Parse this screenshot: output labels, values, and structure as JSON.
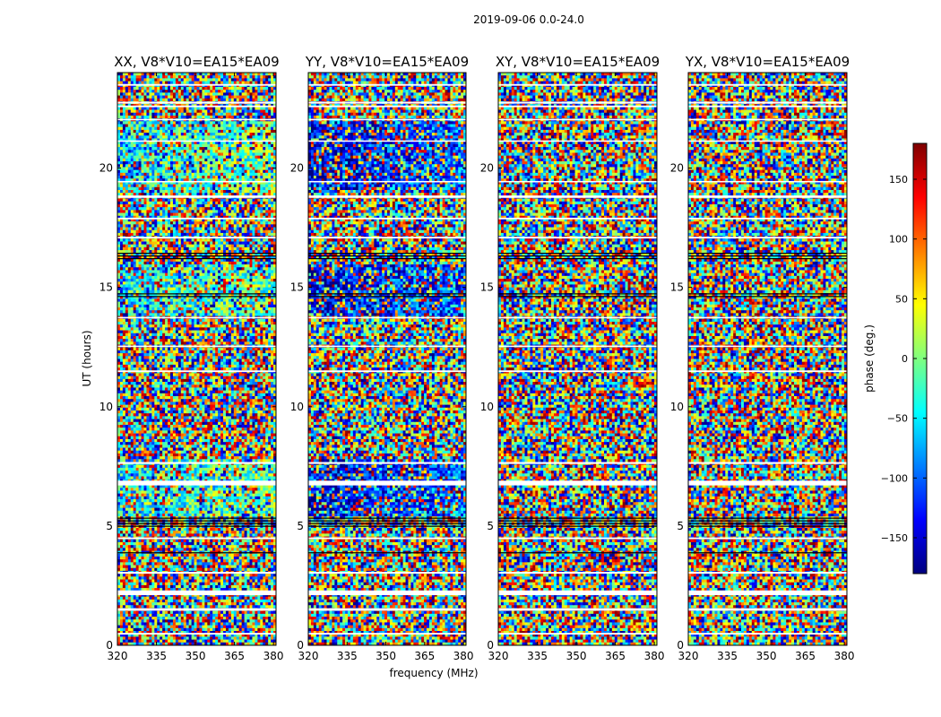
{
  "figure": {
    "suptitle": "2019-09-06 0.0-24.0",
    "xlabel": "frequency (MHz)",
    "ylabel": "UT (hours)",
    "colormap_colors": [
      "#00007f",
      "#0000ff",
      "#007fff",
      "#00ffff",
      "#7fff7f",
      "#ffff00",
      "#ff7f00",
      "#ff0000",
      "#7f0000"
    ]
  },
  "colorbar": {
    "label": "phase (deg.)",
    "range": [
      -180,
      180
    ],
    "ticks": [
      {
        "value": 150,
        "label": "150"
      },
      {
        "value": 100,
        "label": "100"
      },
      {
        "value": 50,
        "label": "50"
      },
      {
        "value": 0,
        "label": "0"
      },
      {
        "value": -50,
        "label": "−50"
      },
      {
        "value": -100,
        "label": "−100"
      },
      {
        "value": -150,
        "label": "−150"
      }
    ]
  },
  "chart_data": {
    "type": "heatmap",
    "xlim": [
      320,
      381
    ],
    "ylim": [
      0,
      24
    ],
    "xticks": [
      {
        "value": 320,
        "label": "320"
      },
      {
        "value": 335,
        "label": "335"
      },
      {
        "value": 350,
        "label": "350"
      },
      {
        "value": 365,
        "label": "365"
      },
      {
        "value": 380,
        "label": "380"
      }
    ],
    "yticks": [
      {
        "value": 0,
        "label": "0"
      },
      {
        "value": 5,
        "label": "5"
      },
      {
        "value": 10,
        "label": "10"
      },
      {
        "value": 15,
        "label": "15"
      },
      {
        "value": 20,
        "label": "20"
      }
    ],
    "panels": [
      {
        "title": "XX, V8*V10=EA15*EA09",
        "bias": 0.35
      },
      {
        "title": "YY, V8*V10=EA15*EA09",
        "bias": 0.08
      },
      {
        "title": "XY, V8*V10=EA15*EA09",
        "bias": 0.0
      },
      {
        "title": "YX, V8*V10=EA15*EA09",
        "bias": 0.0
      }
    ],
    "flagged_ut_bands": [
      [
        0.45,
        0.52
      ],
      [
        1.45,
        1.55
      ],
      [
        2.1,
        2.3
      ],
      [
        3.0,
        3.08
      ],
      [
        4.45,
        4.52
      ],
      [
        6.7,
        6.9
      ],
      [
        7.6,
        7.68
      ],
      [
        11.45,
        11.52
      ],
      [
        12.5,
        12.56
      ],
      [
        13.7,
        13.76
      ],
      [
        17.05,
        17.12
      ],
      [
        17.85,
        17.92
      ],
      [
        18.75,
        18.85
      ],
      [
        19.4,
        19.46
      ],
      [
        21.1,
        21.16
      ],
      [
        22.0,
        22.06
      ],
      [
        22.55,
        22.62
      ],
      [
        22.7,
        22.78
      ],
      [
        23.45,
        23.52
      ]
    ],
    "dark_ut_bands": [
      [
        5.0,
        5.35
      ],
      [
        16.2,
        16.45
      ],
      [
        14.6,
        14.75
      ],
      [
        3.8,
        3.9
      ]
    ]
  }
}
